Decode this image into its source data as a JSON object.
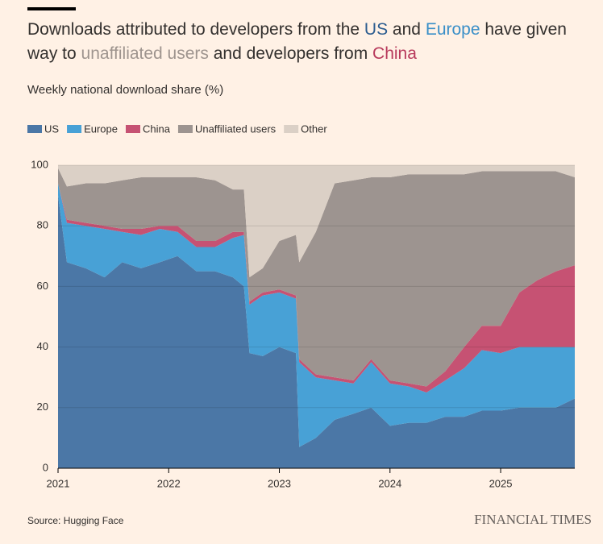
{
  "chart_data": {
    "type": "stacked-area",
    "title": [
      {
        "text": "Downloads attributed to developers from the ",
        "color": "#33302e"
      },
      {
        "text": "US",
        "color": "#2b5c8f"
      },
      {
        "text": " and ",
        "color": "#33302e"
      },
      {
        "text": "Europe",
        "color": "#3a8fc8"
      },
      {
        "text": " have given way to ",
        "color": "#33302e"
      },
      {
        "text": "unaffiliated users",
        "color": "#9e948e"
      },
      {
        "text": " and developers from ",
        "color": "#33302e"
      },
      {
        "text": "China",
        "color": "#b7395b"
      }
    ],
    "subtitle": "Weekly national download share (%)",
    "source": "Source: Hugging Face",
    "brand": "FINANCIAL TIMES",
    "x": [
      2021.0,
      2021.08,
      2021.25,
      2021.42,
      2021.58,
      2021.75,
      2021.92,
      2022.08,
      2022.25,
      2022.42,
      2022.58,
      2022.68,
      2022.73,
      2022.85,
      2023.0,
      2023.15,
      2023.18,
      2023.33,
      2023.5,
      2023.67,
      2023.83,
      2024.0,
      2024.17,
      2024.33,
      2024.5,
      2024.67,
      2024.83,
      2025.0,
      2025.17,
      2025.33,
      2025.5,
      2025.67
    ],
    "series": [
      {
        "name": "US",
        "color": "#4b77a6",
        "values": [
          90,
          68,
          66,
          63,
          68,
          66,
          68,
          70,
          65,
          65,
          63,
          60,
          38,
          37,
          40,
          38,
          7,
          10,
          16,
          18,
          20,
          14,
          15,
          15,
          17,
          17,
          19,
          19,
          20,
          20,
          20,
          23
        ]
      },
      {
        "name": "Europe",
        "color": "#48a1d6",
        "values": [
          4,
          13,
          14,
          16,
          10,
          11,
          11,
          8,
          8,
          8,
          13,
          17,
          16,
          20,
          18,
          18,
          28,
          20,
          13,
          10,
          15,
          14,
          12,
          10,
          12,
          16,
          20,
          19,
          20,
          20,
          20,
          17
        ]
      },
      {
        "name": "China",
        "color": "#c65273",
        "values": [
          0,
          1,
          1,
          1,
          1,
          2,
          1,
          2,
          2,
          2,
          2,
          1,
          1,
          1,
          1,
          1,
          1,
          1,
          1,
          1,
          1,
          1,
          1,
          2,
          3,
          7,
          8,
          9,
          18,
          22,
          25,
          27
        ]
      },
      {
        "name": "Unaffiliated users",
        "color": "#9d9490",
        "values": [
          5,
          11,
          13,
          14,
          16,
          17,
          16,
          16,
          21,
          20,
          14,
          14,
          8,
          8,
          16,
          20,
          32,
          47,
          64,
          66,
          60,
          67,
          69,
          70,
          65,
          57,
          51,
          51,
          40,
          36,
          33,
          29
        ]
      },
      {
        "name": "Other",
        "color": "#dbd0c6",
        "values": [
          1,
          7,
          6,
          6,
          5,
          4,
          4,
          4,
          4,
          5,
          8,
          8,
          37,
          34,
          25,
          23,
          32,
          22,
          6,
          5,
          4,
          4,
          3,
          3,
          3,
          3,
          2,
          2,
          2,
          2,
          2,
          4
        ]
      }
    ],
    "xlim": [
      2021,
      2025.67
    ],
    "xticks": [
      2021,
      2022,
      2023,
      2024,
      2025
    ],
    "ylim": [
      0,
      100
    ],
    "yticks": [
      0,
      20,
      40,
      60,
      80,
      100
    ],
    "grid": true
  }
}
